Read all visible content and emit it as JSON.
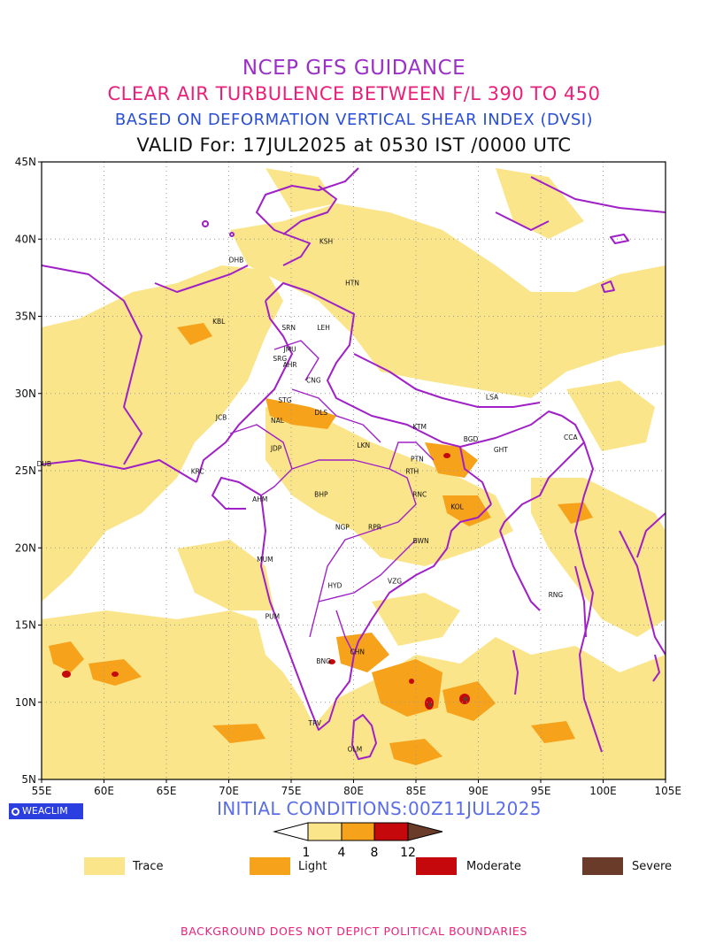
{
  "header": {
    "line1": "NCEP GFS GUIDANCE",
    "line2": "CLEAR AIR TURBULENCE BETWEEN F/L 390 TO 450",
    "line3": "BASED ON DEFORMATION VERTICAL SHEAR INDEX (DVSI)",
    "line4": "VALID For: 17JUL2025 at 0530 IST /0000 UTC"
  },
  "map": {
    "lat_labels": [
      "45N",
      "40N",
      "35N",
      "30N",
      "25N",
      "20N",
      "15N",
      "10N",
      "5N"
    ],
    "lon_labels": [
      "55E",
      "60E",
      "65E",
      "70E",
      "75E",
      "80E",
      "85E",
      "90E",
      "95E",
      "100E",
      "105E"
    ],
    "cities": [
      {
        "code": "KSH",
        "lon": 77.8,
        "lat": 39.7
      },
      {
        "code": "DHB",
        "lon": 70.6,
        "lat": 38.5
      },
      {
        "code": "HTN",
        "lon": 79.9,
        "lat": 37.0
      },
      {
        "code": "KBL",
        "lon": 69.2,
        "lat": 34.5
      },
      {
        "code": "SRN",
        "lon": 74.8,
        "lat": 34.1
      },
      {
        "code": "LEH",
        "lon": 77.6,
        "lat": 34.1
      },
      {
        "code": "JMU",
        "lon": 74.9,
        "lat": 32.7
      },
      {
        "code": "SRG",
        "lon": 74.1,
        "lat": 32.1
      },
      {
        "code": "AHR",
        "lon": 74.9,
        "lat": 31.7
      },
      {
        "code": "CNG",
        "lon": 76.8,
        "lat": 30.7
      },
      {
        "code": "STG",
        "lon": 74.5,
        "lat": 29.4
      },
      {
        "code": "DLS",
        "lon": 77.4,
        "lat": 28.6
      },
      {
        "code": "LSA",
        "lon": 91.1,
        "lat": 29.6
      },
      {
        "code": "JCB",
        "lon": 69.4,
        "lat": 28.3
      },
      {
        "code": "NAL",
        "lon": 73.9,
        "lat": 28.1
      },
      {
        "code": "KTM",
        "lon": 85.3,
        "lat": 27.7
      },
      {
        "code": "BGD",
        "lon": 89.4,
        "lat": 26.9
      },
      {
        "code": "CCA",
        "lon": 97.4,
        "lat": 27.0
      },
      {
        "code": "JDP",
        "lon": 73.8,
        "lat": 26.3
      },
      {
        "code": "LKN",
        "lon": 80.8,
        "lat": 26.5
      },
      {
        "code": "GHT",
        "lon": 91.8,
        "lat": 26.2
      },
      {
        "code": "PTN",
        "lon": 85.1,
        "lat": 25.6
      },
      {
        "code": "DUB",
        "lon": 55.2,
        "lat": 25.3
      },
      {
        "code": "KRC",
        "lon": 67.5,
        "lat": 24.8
      },
      {
        "code": "RTH",
        "lon": 84.7,
        "lat": 24.8
      },
      {
        "code": "AHM",
        "lon": 72.5,
        "lat": 23.0
      },
      {
        "code": "BHP",
        "lon": 77.4,
        "lat": 23.3
      },
      {
        "code": "RNC",
        "lon": 85.3,
        "lat": 23.3
      },
      {
        "code": "KOL",
        "lon": 88.3,
        "lat": 22.5
      },
      {
        "code": "NGP",
        "lon": 79.1,
        "lat": 21.2
      },
      {
        "code": "RPR",
        "lon": 81.7,
        "lat": 21.2
      },
      {
        "code": "BWN",
        "lon": 85.4,
        "lat": 20.3
      },
      {
        "code": "MUM",
        "lon": 72.9,
        "lat": 19.1
      },
      {
        "code": "HYD",
        "lon": 78.5,
        "lat": 17.4
      },
      {
        "code": "VZG",
        "lon": 83.3,
        "lat": 17.7
      },
      {
        "code": "RNG",
        "lon": 96.2,
        "lat": 16.8
      },
      {
        "code": "PUM",
        "lon": 73.5,
        "lat": 15.4
      },
      {
        "code": "CHN",
        "lon": 80.3,
        "lat": 13.1
      },
      {
        "code": "BNG",
        "lon": 77.6,
        "lat": 12.5
      },
      {
        "code": "TRV",
        "lon": 76.9,
        "lat": 8.5
      },
      {
        "code": "OLM",
        "lon": 80.1,
        "lat": 6.8
      }
    ]
  },
  "logo": {
    "text": "WEACLIM"
  },
  "init": {
    "text": "INITIAL CONDITIONS:00Z11JUL2025"
  },
  "colorbar": {
    "ticks": [
      "1",
      "4",
      "8",
      "12"
    ],
    "colors": {
      "trace": "#fbe58a",
      "light": "#f7a21b",
      "moderate": "#c5080b",
      "severe": "#6b3b2a"
    }
  },
  "legend": [
    {
      "label": "Trace",
      "color": "#fbe58a"
    },
    {
      "label": "Light",
      "color": "#f7a21b"
    },
    {
      "label": "Moderate",
      "color": "#c5080b"
    },
    {
      "label": "Severe",
      "color": "#6b3b2a"
    }
  ],
  "footer": {
    "text": "BACKGROUND DOES NOT DEPICT POLITICAL BOUNDARIES"
  }
}
